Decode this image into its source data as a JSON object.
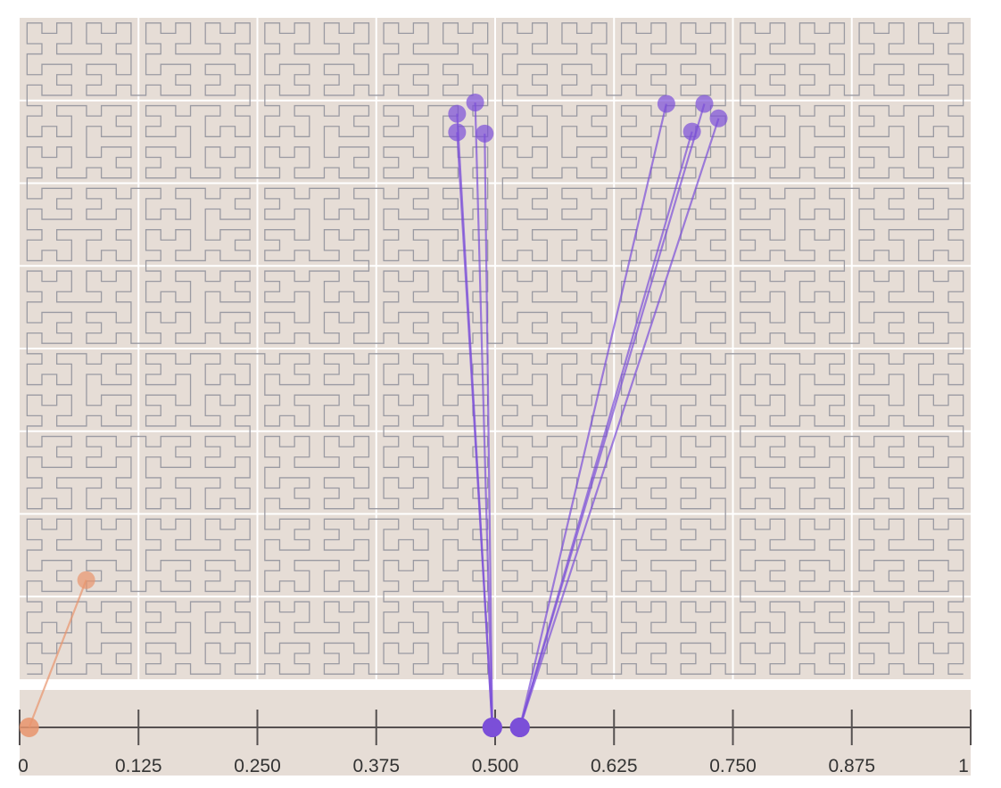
{
  "colors": {
    "panel_bg": "#e6ddd6",
    "grid_line": "#ffffff",
    "curve_stroke": "#9a9aa2",
    "axis": "#555050",
    "orange": "#e8946c",
    "purple": "#7b4fd8",
    "purple_light": "#9f7fe0"
  },
  "axis": {
    "ticks": [
      "0",
      "0.125",
      "0.250",
      "0.375",
      "0.500",
      "0.625",
      "0.750",
      "0.875",
      "1"
    ],
    "domain": [
      0,
      1
    ]
  },
  "curve": {
    "type": "hilbert",
    "order": 6,
    "grid_divisions": 8
  },
  "links": [
    {
      "t": 0.01,
      "point": [
        0.07,
        0.85
      ],
      "color": "orange"
    },
    {
      "t": 0.497,
      "point": [
        0.46,
        0.145
      ],
      "color": "purple"
    },
    {
      "t": 0.497,
      "point": [
        0.46,
        0.173
      ],
      "color": "purple"
    },
    {
      "t": 0.497,
      "point": [
        0.479,
        0.128
      ],
      "color": "purple"
    },
    {
      "t": 0.497,
      "point": [
        0.489,
        0.175
      ],
      "color": "purple"
    },
    {
      "t": 0.526,
      "point": [
        0.68,
        0.13
      ],
      "color": "purple"
    },
    {
      "t": 0.526,
      "point": [
        0.72,
        0.13
      ],
      "color": "purple"
    },
    {
      "t": 0.526,
      "point": [
        0.707,
        0.172
      ],
      "color": "purple"
    },
    {
      "t": 0.526,
      "point": [
        0.735,
        0.152
      ],
      "color": "purple"
    }
  ]
}
